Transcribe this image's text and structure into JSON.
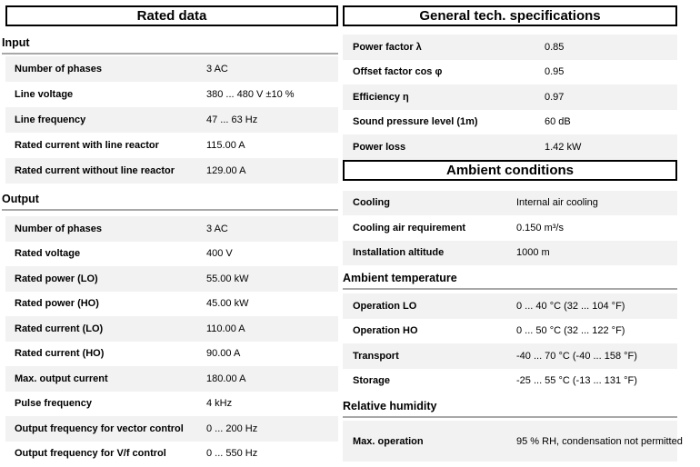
{
  "colors": {
    "stripe": "#f2f2f2",
    "box_border": "#000000",
    "section_divider": "#a8a8a8",
    "text": "#000000"
  },
  "left": {
    "title": "Rated data",
    "groups": [
      {
        "key": "input",
        "heading": "Input",
        "rows": [
          {
            "label": "Number of phases",
            "value": "3 AC"
          },
          {
            "label": "Line voltage",
            "value": "380 ... 480 V ±10 %"
          },
          {
            "label": "Line frequency",
            "value": "47 ... 63 Hz"
          },
          {
            "label": "Rated current with line reactor",
            "value": "115.00 A"
          },
          {
            "label": "Rated current without line reactor",
            "value": "129.00 A"
          }
        ]
      },
      {
        "key": "output",
        "heading": "Output",
        "rows": [
          {
            "label": "Number of phases",
            "value": "3 AC"
          },
          {
            "label": "Rated voltage",
            "value": "400 V"
          },
          {
            "label": "Rated power (LO)",
            "value": "55.00 kW"
          },
          {
            "label": "Rated power (HO)",
            "value": "45.00 kW"
          },
          {
            "label": "Rated current (LO)",
            "value": "110.00 A"
          },
          {
            "label": "Rated current (HO)",
            "value": "90.00 A"
          },
          {
            "label": "Max. output current",
            "value": "180.00 A"
          },
          {
            "label": "Pulse frequency",
            "value": "4 kHz"
          },
          {
            "label": "Output frequency for vector control",
            "value": "0 ... 200 Hz"
          },
          {
            "label": "Output frequency for V/f control",
            "value": "0 ... 550 Hz"
          }
        ]
      }
    ]
  },
  "right": {
    "tables": [
      {
        "key": "general",
        "title": "General tech. specifications",
        "groups": [
          {
            "key": "general",
            "heading": null,
            "rows": [
              {
                "label": "Power factor λ",
                "value": "0.85"
              },
              {
                "label": "Offset factor cos φ",
                "value": "0.95"
              },
              {
                "label": "Efficiency η",
                "value": "0.97"
              },
              {
                "label": "Sound pressure level (1m)",
                "value": "60 dB"
              },
              {
                "label": "Power loss",
                "value": "1.42 kW"
              }
            ]
          }
        ]
      },
      {
        "key": "ambient",
        "title": "Ambient conditions",
        "groups": [
          {
            "key": "cooling",
            "heading": null,
            "rows": [
              {
                "label": "Cooling",
                "value": "Internal air cooling"
              },
              {
                "label": "Cooling air requirement",
                "value": "0.150 m³/s"
              },
              {
                "label": "Installation altitude",
                "value": "1000 m"
              }
            ]
          },
          {
            "key": "temp",
            "heading": "Ambient temperature",
            "rows": [
              {
                "label": "Operation LO",
                "value": "0 ... 40 °C (32 ... 104 °F)"
              },
              {
                "label": "Operation HO",
                "value": "0 ... 50 °C (32 ... 122 °F)"
              },
              {
                "label": "Transport",
                "value": "-40 ... 70 °C (-40 ... 158 °F)"
              },
              {
                "label": "Storage",
                "value": "-25 ... 55 °C (-13 ... 131 °F)"
              }
            ]
          },
          {
            "key": "humidity",
            "heading": "Relative humidity",
            "rows": [
              {
                "label": "Max. operation",
                "value": "95 % RH, condensation not permitted",
                "tall": true
              }
            ]
          }
        ]
      }
    ]
  }
}
